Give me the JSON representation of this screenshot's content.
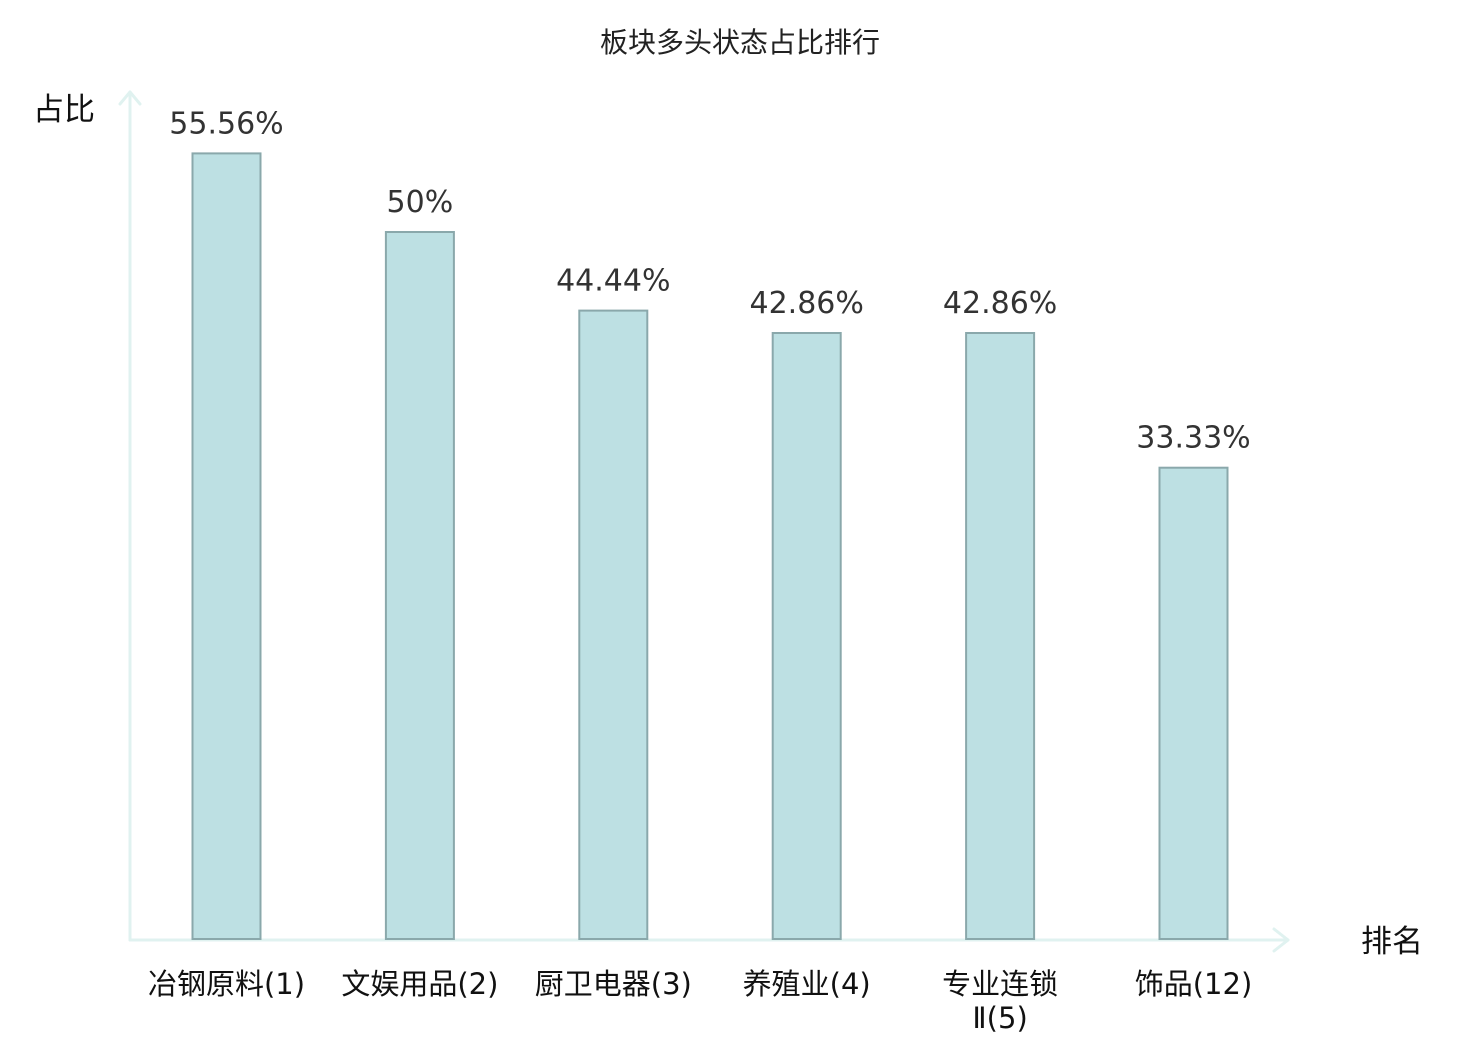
{
  "chart_data": {
    "type": "bar",
    "title": "板块多头状态占比排行",
    "ylabel": "占比",
    "xlabel": "排名",
    "ylim": [
      0,
      60
    ],
    "grid": false,
    "legend": "none",
    "categories": [
      [
        "冶钢原料(1)"
      ],
      [
        "文娱用品(2)"
      ],
      [
        "厨卫电器(3)"
      ],
      [
        "养殖业(4)"
      ],
      [
        "专业连锁",
        "Ⅱ(5)"
      ],
      [
        "饰品(12)"
      ]
    ],
    "values": [
      55.56,
      50,
      44.44,
      42.86,
      42.86,
      33.33
    ],
    "value_labels": [
      "55.56%",
      "50%",
      "44.44%",
      "42.86%",
      "42.86%",
      "33.33%"
    ],
    "highlight_index": 5,
    "colors": {
      "bar_fill": "#bde0e3",
      "bar_stroke": "#8aa8ab",
      "axis": "#e0f2f0",
      "highlight_text": "#e02020",
      "category_text": "#111111",
      "value_text": "#333333"
    }
  }
}
